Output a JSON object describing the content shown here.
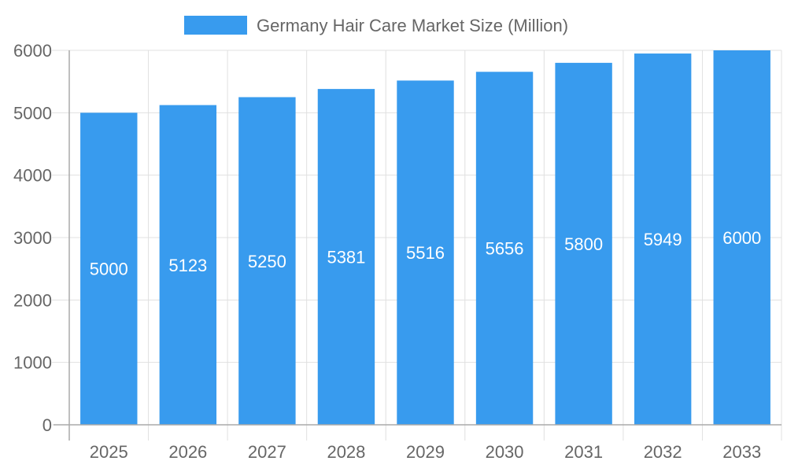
{
  "chart_data": {
    "type": "bar",
    "title": "",
    "legend": {
      "position": "top",
      "entries": [
        "Germany Hair Care Market Size (Million)"
      ]
    },
    "categories": [
      "2025",
      "2026",
      "2027",
      "2028",
      "2029",
      "2030",
      "2031",
      "2032",
      "2033"
    ],
    "series": [
      {
        "name": "Germany Hair Care Market Size (Million)",
        "values": [
          5000,
          5123,
          5250,
          5381,
          5516,
          5656,
          5800,
          5949,
          6000
        ],
        "color": "#389BEE"
      }
    ],
    "data_labels": [
      "5000",
      "5123",
      "5250",
      "5381",
      "5516",
      "5656",
      "5800",
      "5949",
      "6000"
    ],
    "yticks": [
      "0",
      "1000",
      "2000",
      "3000",
      "4000",
      "5000",
      "6000"
    ],
    "ylim": [
      0,
      6000
    ],
    "xlabel": "",
    "ylabel": "",
    "grid": true
  }
}
